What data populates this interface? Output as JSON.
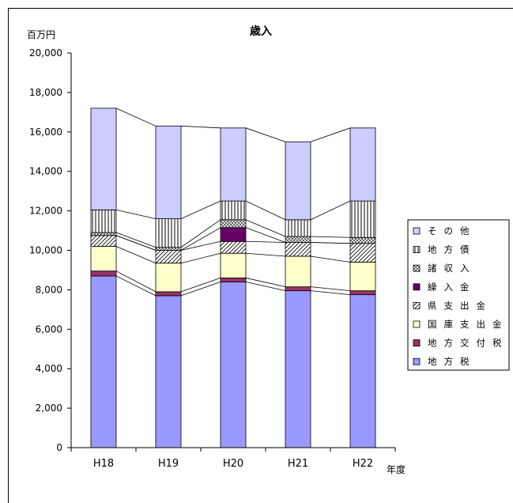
{
  "chart_data": {
    "type": "bar",
    "stacked": true,
    "title": "歳入",
    "ylabel": "百万円",
    "xlabel": "年度",
    "ylim": [
      0,
      20000
    ],
    "ytick_step": 2000,
    "ytick_labels": [
      "0",
      "2,000",
      "4,000",
      "6,000",
      "8,000",
      "10,000",
      "12,000",
      "14,000",
      "16,000",
      "18,000",
      "20,000"
    ],
    "categories": [
      "H18",
      "H19",
      "H20",
      "H21",
      "H22"
    ],
    "legend_placement": "right",
    "series": [
      {
        "name": "地方税",
        "color": "#9999ff",
        "pattern": "solid",
        "values": [
          8700,
          7700,
          8400,
          7950,
          7750
        ]
      },
      {
        "name": "地方交付税",
        "color": "#993366",
        "pattern": "solid",
        "values": [
          250,
          200,
          200,
          200,
          200
        ]
      },
      {
        "name": "国庫支出金",
        "color": "#ffffcc",
        "pattern": "solid",
        "values": [
          1250,
          1450,
          1250,
          1550,
          1450
        ]
      },
      {
        "name": "県支出金",
        "color": "#ffffff",
        "pattern": "diag",
        "values": [
          550,
          650,
          600,
          700,
          950
        ]
      },
      {
        "name": "繰入金",
        "color": "#660066",
        "pattern": "solid",
        "values": [
          0,
          0,
          700,
          0,
          0
        ]
      },
      {
        "name": "諸収入",
        "color": "#ffffff",
        "pattern": "cross",
        "values": [
          150,
          150,
          400,
          300,
          300
        ]
      },
      {
        "name": "地方債",
        "color": "#ffffff",
        "pattern": "vertical",
        "values": [
          1150,
          1450,
          950,
          850,
          1850
        ]
      },
      {
        "name": "その他",
        "color": "#ccccff",
        "pattern": "solid",
        "values": [
          5150,
          4700,
          3700,
          3950,
          3700
        ]
      }
    ]
  }
}
